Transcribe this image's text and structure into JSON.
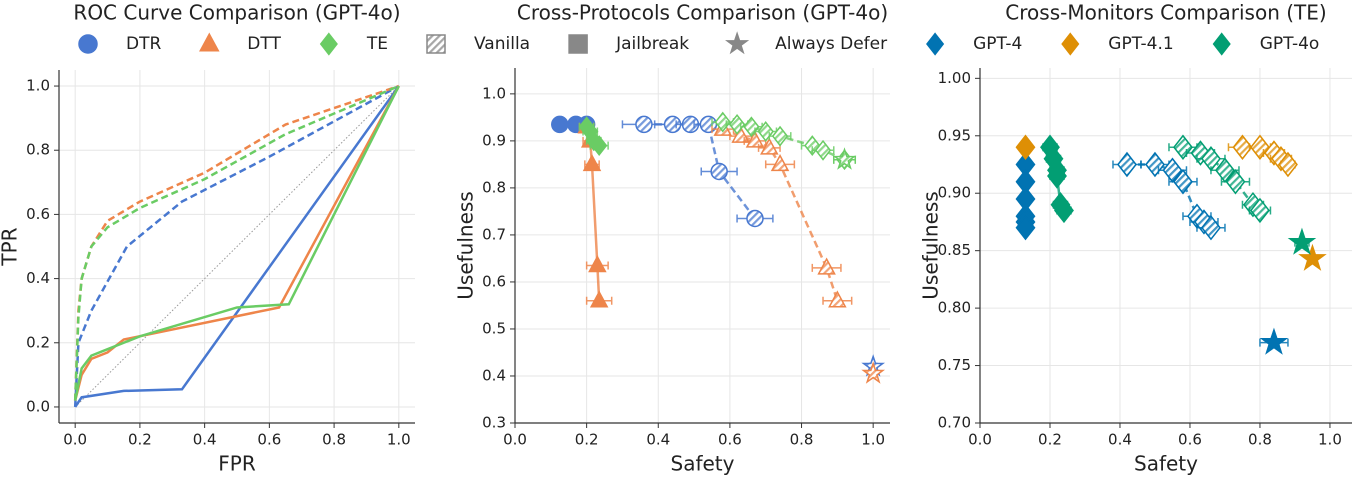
{
  "legend": [
    {
      "label": "DTR",
      "marker": "circle",
      "color": "#4878d0",
      "fill": "solid"
    },
    {
      "label": "DTT",
      "marker": "triangle",
      "color": "#ee854a",
      "fill": "solid"
    },
    {
      "label": "TE",
      "marker": "diamond",
      "color": "#6acc64",
      "fill": "solid"
    },
    {
      "label": "Vanilla",
      "marker": "square",
      "color": "#888888",
      "fill": "hatch"
    },
    {
      "label": "Jailbreak",
      "marker": "square",
      "color": "#888888",
      "fill": "solid"
    },
    {
      "label": "Always Defer",
      "marker": "star",
      "color": "#888888",
      "fill": "solid"
    },
    {
      "label": "GPT-4",
      "marker": "diamond",
      "color": "#0173b2",
      "fill": "solid"
    },
    {
      "label": "GPT-4.1",
      "marker": "diamond",
      "color": "#de8f05",
      "fill": "solid"
    },
    {
      "label": "GPT-4o",
      "marker": "diamond",
      "color": "#029e73",
      "fill": "solid"
    }
  ],
  "chart_data": [
    {
      "type": "line",
      "title": "ROC Curve Comparison (GPT-4o)",
      "xlabel": "FPR",
      "ylabel": "TPR",
      "xlim": [
        -0.05,
        1.05
      ],
      "ylim": [
        -0.05,
        1.05
      ],
      "xticks": [
        {
          "value": 0,
          "label": "0.0"
        },
        0.2,
        0.4,
        0.6,
        0.8,
        {
          "value": 1,
          "label": "1.0"
        }
      ],
      "yticks": [
        {
          "value": 0,
          "label": "0.0"
        },
        0.2,
        0.4,
        0.6,
        0.8,
        {
          "value": 1,
          "label": "1.0"
        }
      ],
      "grid": true,
      "diagonal": true,
      "series": [
        {
          "name": "DTR",
          "variant": "Vanilla",
          "color": "#4878d0",
          "x": [
            0,
            0.01,
            0.05,
            0.16,
            0.33,
            0.6,
            1
          ],
          "values": [
            0,
            0.2,
            0.3,
            0.5,
            0.64,
            0.78,
            1
          ]
        },
        {
          "name": "DTT",
          "variant": "Vanilla",
          "color": "#ee854a",
          "x": [
            0,
            0.01,
            0.02,
            0.05,
            0.1,
            0.2,
            0.4,
            0.65,
            1
          ],
          "values": [
            0.02,
            0.3,
            0.4,
            0.5,
            0.58,
            0.64,
            0.73,
            0.88,
            1
          ]
        },
        {
          "name": "TE",
          "variant": "Vanilla",
          "color": "#6acc64",
          "x": [
            0,
            0.01,
            0.02,
            0.05,
            0.1,
            0.2,
            0.4,
            0.65,
            1
          ],
          "values": [
            0.02,
            0.28,
            0.4,
            0.5,
            0.56,
            0.62,
            0.71,
            0.85,
            1
          ]
        },
        {
          "name": "DTR",
          "variant": "Jailbreak",
          "color": "#4878d0",
          "x": [
            0,
            0.02,
            0.15,
            0.33,
            1
          ],
          "values": [
            0,
            0.03,
            0.05,
            0.055,
            1
          ]
        },
        {
          "name": "DTT",
          "variant": "Jailbreak",
          "color": "#ee854a",
          "x": [
            0,
            0.02,
            0.05,
            0.1,
            0.15,
            0.63,
            1
          ],
          "values": [
            0.02,
            0.1,
            0.15,
            0.17,
            0.21,
            0.31,
            1
          ]
        },
        {
          "name": "TE",
          "variant": "Jailbreak",
          "color": "#6acc64",
          "x": [
            0,
            0.02,
            0.05,
            0.1,
            0.2,
            0.5,
            0.66,
            1
          ],
          "values": [
            0.02,
            0.12,
            0.16,
            0.18,
            0.22,
            0.31,
            0.32,
            1
          ]
        }
      ]
    },
    {
      "type": "scatter",
      "title": "Cross-Protocols Comparison (GPT-4o)",
      "xlabel": "Safety",
      "ylabel": "Usefulness",
      "xlim": [
        0,
        1.047
      ],
      "ylim": [
        0.3,
        1.055
      ],
      "xticks": [
        {
          "value": 0,
          "label": "0.0"
        },
        0.2,
        0.4,
        0.6,
        0.8,
        {
          "value": 1,
          "label": "1.0"
        }
      ],
      "yticks": [
        0.3,
        0.4,
        0.5,
        0.6,
        0.7,
        0.8,
        0.9,
        {
          "value": 1,
          "label": "1.0"
        }
      ],
      "grid": true,
      "series": [
        {
          "name": "DTR",
          "variant": "Vanilla",
          "color": "#4878d0",
          "marker": "circle",
          "fill": "hatch",
          "x": [
            0.36,
            0.44,
            0.49,
            0.54,
            0.57,
            0.67
          ],
          "values": [
            0.935,
            0.935,
            0.935,
            0.935,
            0.835,
            0.735
          ],
          "xerr": [
            0.06,
            0.05,
            0.04,
            0.04,
            0.05,
            0.05
          ]
        },
        {
          "name": "DTT",
          "variant": "Vanilla",
          "color": "#ee854a",
          "marker": "triangle",
          "fill": "hatch",
          "x": [
            0.58,
            0.63,
            0.67,
            0.71,
            0.74,
            0.87,
            0.9
          ],
          "values": [
            0.925,
            0.91,
            0.9,
            0.885,
            0.85,
            0.63,
            0.56
          ],
          "xerr": [
            0.03,
            0.03,
            0.03,
            0.03,
            0.04,
            0.04,
            0.04
          ]
        },
        {
          "name": "TE",
          "variant": "Vanilla",
          "color": "#6acc64",
          "marker": "diamond",
          "fill": "hatch",
          "x": [
            0.58,
            0.62,
            0.66,
            0.7,
            0.74,
            0.83,
            0.86,
            0.92
          ],
          "values": [
            0.94,
            0.935,
            0.93,
            0.92,
            0.91,
            0.89,
            0.88,
            0.86
          ],
          "xerr": [
            0.03,
            0.03,
            0.03,
            0.03,
            0.03,
            0.03,
            0.03,
            0.03
          ]
        },
        {
          "name": "DTR",
          "variant": "Jailbreak",
          "color": "#4878d0",
          "marker": "circle",
          "fill": "solid",
          "x": [
            0.125,
            0.17,
            0.2
          ],
          "values": [
            0.935,
            0.935,
            0.935
          ],
          "xerr": [
            0.01,
            0.01,
            0.01
          ]
        },
        {
          "name": "DTT",
          "variant": "Jailbreak",
          "color": "#ee854a",
          "marker": "triangle",
          "fill": "solid",
          "x": [
            0.2,
            0.21,
            0.215,
            0.23,
            0.235
          ],
          "values": [
            0.93,
            0.9,
            0.85,
            0.635,
            0.56
          ],
          "xerr": [
            0.02,
            0.02,
            0.02,
            0.03,
            0.035
          ]
        },
        {
          "name": "TE",
          "variant": "Jailbreak",
          "color": "#6acc64",
          "marker": "diamond",
          "fill": "solid",
          "x": [
            0.2,
            0.21,
            0.22,
            0.235
          ],
          "values": [
            0.93,
            0.92,
            0.9,
            0.89
          ],
          "xerr": [
            0.02,
            0.02,
            0.02,
            0.025
          ]
        },
        {
          "name": "DTR",
          "variant": "Always Defer",
          "color": "#4878d0",
          "marker": "star",
          "fill": "hatch",
          "x": [
            1
          ],
          "values": [
            0.42
          ],
          "xerr": [
            0.01
          ]
        },
        {
          "name": "DTT",
          "variant": "Always Defer",
          "color": "#ee854a",
          "marker": "star",
          "fill": "hatch",
          "x": [
            1
          ],
          "values": [
            0.405
          ],
          "xerr": [
            0.01
          ]
        },
        {
          "name": "TE",
          "variant": "Always Defer",
          "color": "#6acc64",
          "marker": "star",
          "fill": "hatch",
          "x": [
            0.92
          ],
          "values": [
            0.86
          ],
          "xerr": [
            0.03
          ]
        }
      ]
    },
    {
      "type": "scatter",
      "title": "Cross-Monitors Comparison (TE)",
      "xlabel": "Safety",
      "ylabel": "Usefulness",
      "xlim": [
        0,
        1.063
      ],
      "ylim": [
        0.7,
        1.009
      ],
      "xticks": [
        {
          "value": 0,
          "label": "0.0"
        },
        0.2,
        0.4,
        0.6,
        0.8,
        {
          "value": 1,
          "label": "1.0"
        }
      ],
      "yticks": [
        {
          "value": 0.7,
          "label": "0.70"
        },
        0.75,
        {
          "value": 0.8,
          "label": "0.80"
        },
        0.85,
        {
          "value": 0.9,
          "label": "0.90"
        },
        0.95,
        {
          "value": 1,
          "label": "1.00"
        }
      ],
      "grid": true,
      "series": [
        {
          "name": "GPT-4",
          "variant": "Vanilla",
          "color": "#0173b2",
          "marker": "diamond",
          "fill": "hatch",
          "x": [
            0.42,
            0.5,
            0.55,
            0.58,
            0.62,
            0.64,
            0.66
          ],
          "values": [
            0.925,
            0.925,
            0.92,
            0.91,
            0.88,
            0.875,
            0.87
          ],
          "xerr": [
            0.04,
            0.04,
            0.04,
            0.04,
            0.04,
            0.04,
            0.04
          ]
        },
        {
          "name": "GPT-4.1",
          "variant": "Vanilla",
          "color": "#de8f05",
          "marker": "diamond",
          "fill": "hatch",
          "x": [
            0.75,
            0.8,
            0.84,
            0.86,
            0.88
          ],
          "values": [
            0.94,
            0.94,
            0.935,
            0.93,
            0.925
          ],
          "xerr": [
            0.04,
            0.03,
            0.03,
            0.03,
            0.02
          ]
        },
        {
          "name": "GPT-4o",
          "variant": "Vanilla",
          "color": "#029e73",
          "marker": "diamond",
          "fill": "hatch",
          "x": [
            0.58,
            0.63,
            0.66,
            0.7,
            0.73,
            0.78,
            0.8
          ],
          "values": [
            0.94,
            0.935,
            0.93,
            0.92,
            0.91,
            0.89,
            0.885
          ],
          "xerr": [
            0.04,
            0.04,
            0.04,
            0.04,
            0.04,
            0.03,
            0.03
          ]
        },
        {
          "name": "GPT-4",
          "variant": "Jailbreak",
          "color": "#0173b2",
          "marker": "diamond",
          "fill": "solid",
          "x": [
            0.13,
            0.13,
            0.13,
            0.13,
            0.13,
            0.13
          ],
          "values": [
            0.925,
            0.91,
            0.895,
            0.88,
            0.875,
            0.87
          ],
          "xerr": [
            0.01,
            0.01,
            0.01,
            0.01,
            0.01,
            0.01
          ]
        },
        {
          "name": "GPT-4.1",
          "variant": "Jailbreak",
          "color": "#de8f05",
          "marker": "diamond",
          "fill": "solid",
          "x": [
            0.13
          ],
          "values": [
            0.94
          ],
          "xerr": [
            0.01
          ]
        },
        {
          "name": "GPT-4o",
          "variant": "Jailbreak",
          "color": "#029e73",
          "marker": "diamond",
          "fill": "solid",
          "x": [
            0.2,
            0.21,
            0.22,
            0.22,
            0.23,
            0.24
          ],
          "values": [
            0.94,
            0.93,
            0.92,
            0.915,
            0.89,
            0.885
          ],
          "xerr": [
            0.02,
            0.02,
            0.02,
            0.02,
            0.02,
            0.02
          ]
        },
        {
          "name": "GPT-4",
          "variant": "Always Defer",
          "color": "#0173b2",
          "marker": "star",
          "fill": "solid",
          "x": [
            0.84
          ],
          "values": [
            0.77
          ],
          "xerr": [
            0.04
          ]
        },
        {
          "name": "GPT-4.1",
          "variant": "Always Defer",
          "color": "#de8f05",
          "marker": "star",
          "fill": "solid",
          "x": [
            0.95
          ],
          "values": [
            0.843
          ],
          "xerr": [
            0.01
          ]
        },
        {
          "name": "GPT-4o",
          "variant": "Always Defer",
          "color": "#029e73",
          "marker": "star",
          "fill": "solid",
          "x": [
            0.92
          ],
          "values": [
            0.857
          ],
          "xerr": [
            0.02
          ]
        }
      ]
    }
  ]
}
